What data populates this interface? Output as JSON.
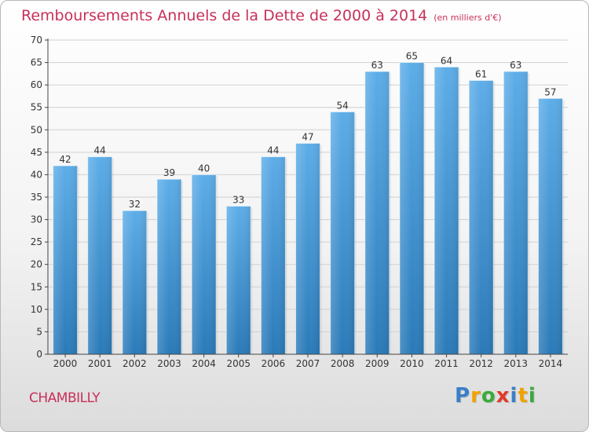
{
  "header": {
    "title": "Remboursements Annuels de la Dette de 2000 à 2014",
    "unit": "(en milliers d'€)"
  },
  "footer": {
    "commune": "CHAMBILLY",
    "logo_letters": [
      {
        "ch": "P",
        "color": "#3a7fc8"
      },
      {
        "ch": "r",
        "color": "#f2a200"
      },
      {
        "ch": "o",
        "color": "#3aaa3a"
      },
      {
        "ch": "x",
        "color": "#e23a2a"
      },
      {
        "ch": "i",
        "color": "#3a7fc8"
      },
      {
        "ch": "t",
        "color": "#f2a200"
      },
      {
        "ch": "i",
        "color": "#3aaa3a"
      }
    ]
  },
  "colors": {
    "title": "#c8305a",
    "bar_top": "#5dade8",
    "bar_bottom": "#2a7ab8",
    "grid": "#d0d0d0",
    "axis": "#444444",
    "text": "#333333"
  },
  "chart_data": {
    "type": "bar",
    "title": "Remboursements Annuels de la Dette de 2000 à 2014",
    "xlabel": "",
    "ylabel": "",
    "categories": [
      "2000",
      "2001",
      "2002",
      "2003",
      "2004",
      "2005",
      "2006",
      "2007",
      "2008",
      "2009",
      "2010",
      "2011",
      "2012",
      "2013",
      "2014"
    ],
    "values": [
      42,
      44,
      32,
      39,
      40,
      33,
      44,
      47,
      54,
      63,
      65,
      64,
      61,
      63,
      57
    ],
    "ylim": [
      0,
      70
    ],
    "yticks": [
      0,
      5,
      10,
      15,
      20,
      25,
      30,
      35,
      40,
      45,
      50,
      55,
      60,
      65,
      70
    ],
    "grid": true
  }
}
